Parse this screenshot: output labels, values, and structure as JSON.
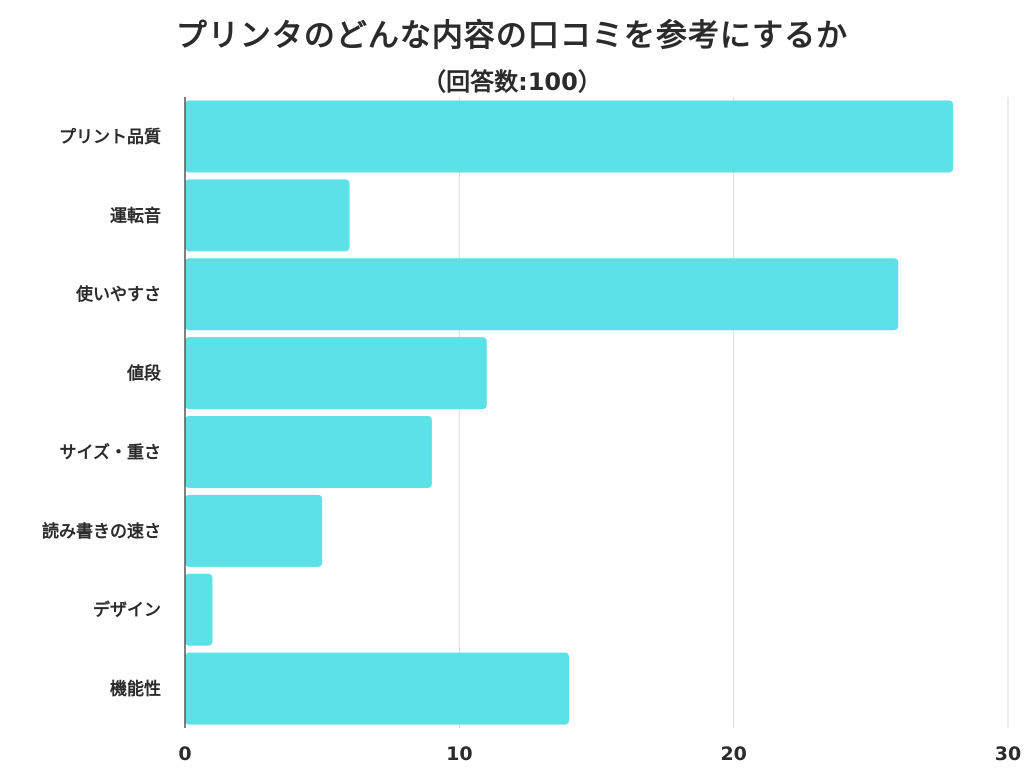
{
  "chart_data": {
    "type": "bar",
    "orientation": "horizontal",
    "title": "プリンタのどんな内容の口コミを参考にするか",
    "subtitle": "（回答数:100）",
    "categories": [
      "プリント品質",
      "運転音",
      "使いやすさ",
      "値段",
      "サイズ・重さ",
      "読み書きの速さ",
      "デザイン",
      "機能性"
    ],
    "values": [
      28,
      6,
      26,
      11,
      9,
      5,
      1,
      14
    ],
    "xlim": [
      0,
      30
    ],
    "ticks": [
      0,
      10,
      20,
      30
    ],
    "tick_labels": [
      "0",
      "10",
      "20",
      "30"
    ],
    "grid": true,
    "bar_color": "#5ce1e6",
    "xlabel": "",
    "ylabel": ""
  }
}
